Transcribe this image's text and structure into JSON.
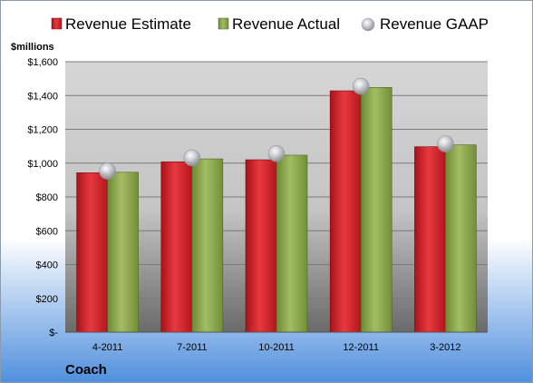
{
  "chart_data": {
    "type": "bar",
    "company": "Coach",
    "ylabel": "$millions",
    "categories": [
      "4-2011",
      "7-2011",
      "10-2011",
      "12-2011",
      "3-2012"
    ],
    "series": [
      {
        "name": "Revenue Estimate",
        "values": [
          943,
          1008,
          1020,
          1428,
          1097
        ],
        "color": "#d42027"
      },
      {
        "name": "Revenue Actual",
        "values": [
          946,
          1025,
          1047,
          1448,
          1108
        ],
        "color": "#8aa64a"
      }
    ],
    "markers": {
      "name": "Revenue GAAP",
      "values": [
        953,
        1031,
        1056,
        1454,
        1114
      ],
      "color": "#bfc4cc"
    },
    "ylim": [
      0,
      1600
    ],
    "yticks": [
      0,
      200,
      400,
      600,
      800,
      1000,
      1200,
      1400,
      1600
    ],
    "ytick_labels": [
      "$-",
      "$200",
      "$400",
      "$600",
      "$800",
      "$1,000",
      "$1,200",
      "$1,400",
      "$1,600"
    ],
    "legend_position": "top",
    "grid": true
  }
}
